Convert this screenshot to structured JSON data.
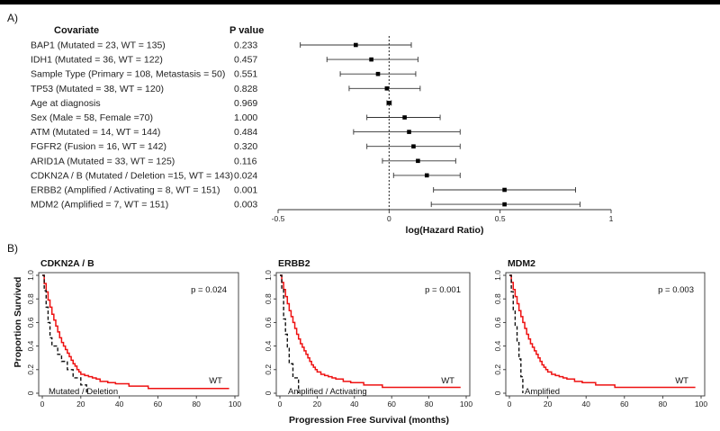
{
  "panel_labels": {
    "a": "A)",
    "b": "B)"
  },
  "chart_data": [
    {
      "type": "forest",
      "headers": {
        "covariate": "Covariate",
        "pvalue": "P value"
      },
      "xlabel": "log(Hazard Ratio)",
      "xlim": [
        -0.5,
        1
      ],
      "xticks": [
        -0.5,
        0,
        0.5,
        1
      ],
      "xtick_labels": [
        "-0.5",
        "0",
        "0.5",
        "1"
      ],
      "reference_line": 0,
      "rows": [
        {
          "label": "BAP1 (Mutated = 23, WT = 135)",
          "p": "0.233",
          "est": -0.15,
          "lo": -0.4,
          "hi": 0.1
        },
        {
          "label": "IDH1 (Mutated = 36, WT = 122)",
          "p": "0.457",
          "est": -0.08,
          "lo": -0.28,
          "hi": 0.13
        },
        {
          "label": "Sample Type (Primary = 108, Metastasis = 50)",
          "p": "0.551",
          "est": -0.05,
          "lo": -0.22,
          "hi": 0.12
        },
        {
          "label": "TP53 (Mutated = 38, WT = 120)",
          "p": "0.828",
          "est": -0.01,
          "lo": -0.18,
          "hi": 0.14
        },
        {
          "label": "Age at diagnosis",
          "p": "0.969",
          "est": 0.0,
          "lo": -0.01,
          "hi": 0.01
        },
        {
          "label": "Sex (Male = 58, Female =70)",
          "p": "1.000",
          "est": 0.07,
          "lo": -0.1,
          "hi": 0.23
        },
        {
          "label": "ATM (Mutated = 14, WT = 144)",
          "p": "0.484",
          "est": 0.09,
          "lo": -0.16,
          "hi": 0.32
        },
        {
          "label": "FGFR2 (Fusion = 16, WT = 142)",
          "p": "0.320",
          "est": 0.11,
          "lo": -0.1,
          "hi": 0.32
        },
        {
          "label": "ARID1A (Mutated = 33, WT = 125)",
          "p": "0.116",
          "est": 0.13,
          "lo": -0.03,
          "hi": 0.3
        },
        {
          "label": "CDKN2A / B (Mutated / Deletion =15, WT = 143)",
          "p": "0.024",
          "est": 0.17,
          "lo": 0.02,
          "hi": 0.32
        },
        {
          "label": "ERBB2 (Amplified / Activating = 8, WT = 151)",
          "p": "0.001",
          "est": 0.52,
          "lo": 0.2,
          "hi": 0.84
        },
        {
          "label": "MDM2 (Amplified = 7, WT = 151)",
          "p": "0.003",
          "est": 0.52,
          "lo": 0.19,
          "hi": 0.86
        }
      ]
    },
    {
      "type": "line",
      "title": "CDKN2A / B",
      "pvalue_text": "p = 0.024",
      "ylabel": "Proportion Survived",
      "xlim": [
        0,
        100
      ],
      "ylim": [
        0,
        1
      ],
      "xticks": [
        0,
        20,
        40,
        60,
        80,
        100
      ],
      "yticks": [
        0,
        0.2,
        0.4,
        0.6,
        0.8,
        1.0
      ],
      "xtick_labels": [
        "0",
        "20",
        "40",
        "60",
        "80",
        "100"
      ],
      "ytick_labels": [
        "0",
        "0.2",
        "0.4",
        "0.6",
        "0.8",
        "1.0"
      ],
      "series": [
        {
          "name": "WT",
          "color": "#ee1111",
          "style": "solid",
          "x": [
            0,
            1,
            2,
            3,
            4,
            5,
            6,
            7,
            8,
            9,
            10,
            11,
            12,
            13,
            14,
            15,
            16,
            17,
            18,
            19,
            20,
            22,
            24,
            26,
            28,
            30,
            34,
            38,
            45,
            55,
            97
          ],
          "y": [
            1.0,
            0.93,
            0.86,
            0.79,
            0.73,
            0.67,
            0.62,
            0.57,
            0.52,
            0.47,
            0.43,
            0.4,
            0.37,
            0.34,
            0.31,
            0.28,
            0.25,
            0.23,
            0.2,
            0.18,
            0.16,
            0.15,
            0.14,
            0.13,
            0.12,
            0.1,
            0.09,
            0.08,
            0.06,
            0.04,
            0.04
          ]
        },
        {
          "name": "Mutated / Deletion",
          "color": "#111111",
          "style": "dashed",
          "x": [
            0,
            1,
            2,
            3,
            4,
            5,
            8,
            10,
            13,
            16,
            20,
            23
          ],
          "y": [
            1.0,
            0.87,
            0.73,
            0.6,
            0.47,
            0.4,
            0.33,
            0.27,
            0.2,
            0.13,
            0.07,
            0.0
          ]
        }
      ],
      "curve_labels": {
        "wt": "WT",
        "alt": "Mutated / Deletion"
      }
    },
    {
      "type": "line",
      "title": "ERBB2",
      "pvalue_text": "p = 0.001",
      "xlim": [
        0,
        100
      ],
      "ylim": [
        0,
        1
      ],
      "xticks": [
        0,
        20,
        40,
        60,
        80,
        100
      ],
      "yticks": [
        0,
        0.2,
        0.4,
        0.6,
        0.8,
        1.0
      ],
      "xtick_labels": [
        "0",
        "20",
        "40",
        "60",
        "80",
        "100"
      ],
      "ytick_labels": [
        "0",
        "0.2",
        "0.4",
        "0.6",
        "0.8",
        "1.0"
      ],
      "xlabel": "Progression Free Survival (months)",
      "series": [
        {
          "name": "WT",
          "color": "#ee1111",
          "style": "solid",
          "x": [
            0,
            1,
            2,
            3,
            4,
            5,
            6,
            7,
            8,
            9,
            10,
            11,
            12,
            13,
            14,
            15,
            16,
            17,
            18,
            19,
            20,
            22,
            24,
            26,
            28,
            30,
            34,
            38,
            45,
            55,
            97
          ],
          "y": [
            1.0,
            0.94,
            0.88,
            0.82,
            0.76,
            0.7,
            0.65,
            0.6,
            0.55,
            0.5,
            0.46,
            0.42,
            0.39,
            0.36,
            0.33,
            0.3,
            0.27,
            0.24,
            0.22,
            0.2,
            0.18,
            0.16,
            0.15,
            0.14,
            0.13,
            0.12,
            0.1,
            0.09,
            0.07,
            0.05,
            0.05
          ]
        },
        {
          "name": "Amplified / Activating",
          "color": "#111111",
          "style": "dashed",
          "x": [
            0,
            1,
            2,
            3,
            4,
            5,
            7,
            10
          ],
          "y": [
            1.0,
            0.88,
            0.63,
            0.5,
            0.38,
            0.25,
            0.13,
            0.0
          ]
        }
      ],
      "curve_labels": {
        "wt": "WT",
        "alt": "Amplified / Activating"
      }
    },
    {
      "type": "line",
      "title": "MDM2",
      "pvalue_text": "p = 0.003",
      "xlim": [
        0,
        100
      ],
      "ylim": [
        0,
        1
      ],
      "xticks": [
        0,
        20,
        40,
        60,
        80,
        100
      ],
      "yticks": [
        0,
        0.2,
        0.4,
        0.6,
        0.8,
        1.0
      ],
      "xtick_labels": [
        "0",
        "20",
        "40",
        "60",
        "80",
        "100"
      ],
      "ytick_labels": [
        "0",
        "0.2",
        "0.4",
        "0.6",
        "0.8",
        "1.0"
      ],
      "series": [
        {
          "name": "WT",
          "color": "#ee1111",
          "style": "solid",
          "x": [
            0,
            1,
            2,
            3,
            4,
            5,
            6,
            7,
            8,
            9,
            10,
            11,
            12,
            13,
            14,
            15,
            16,
            17,
            18,
            19,
            20,
            22,
            24,
            26,
            28,
            30,
            34,
            38,
            45,
            55,
            97
          ],
          "y": [
            1.0,
            0.94,
            0.88,
            0.82,
            0.76,
            0.7,
            0.65,
            0.6,
            0.55,
            0.5,
            0.46,
            0.42,
            0.39,
            0.36,
            0.33,
            0.3,
            0.27,
            0.24,
            0.22,
            0.2,
            0.18,
            0.16,
            0.15,
            0.14,
            0.13,
            0.12,
            0.1,
            0.09,
            0.07,
            0.05,
            0.05
          ]
        },
        {
          "name": "Amplified",
          "color": "#111111",
          "style": "dashed",
          "x": [
            0,
            1,
            2,
            3,
            4,
            5,
            6,
            7
          ],
          "y": [
            1.0,
            0.86,
            0.71,
            0.57,
            0.43,
            0.29,
            0.14,
            0.0
          ]
        }
      ],
      "curve_labels": {
        "wt": "WT",
        "alt": "Amplified"
      }
    }
  ]
}
